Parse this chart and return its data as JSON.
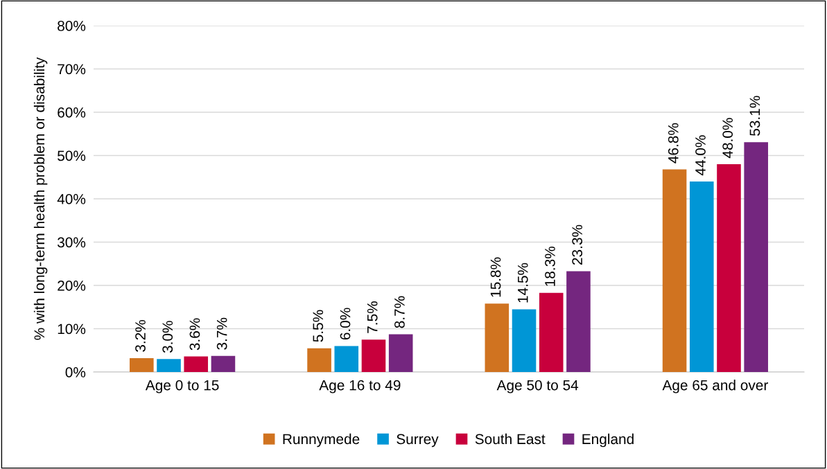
{
  "chart_data": {
    "type": "bar",
    "ylabel": "% with long-term health problem or disability",
    "categories": [
      "Age 0 to 15",
      "Age 16 to 49",
      "Age 50 to 54",
      "Age 65 and over"
    ],
    "series": [
      {
        "name": "Runnymede",
        "color": "#d07320",
        "values": [
          3.2,
          5.5,
          15.8,
          46.8
        ],
        "value_labels": [
          "3.2%",
          "5.5%",
          "15.8%",
          "46.8%"
        ]
      },
      {
        "name": "Surrey",
        "color": "#0096d6",
        "values": [
          3.0,
          6.0,
          14.5,
          44.0
        ],
        "value_labels": [
          "3.0%",
          "6.0%",
          "14.5%",
          "44.0%"
        ]
      },
      {
        "name": "South East",
        "color": "#c8003c",
        "values": [
          3.6,
          7.5,
          18.3,
          48.0
        ],
        "value_labels": [
          "3.6%",
          "7.5%",
          "18.3%",
          "48.0%"
        ]
      },
      {
        "name": "England",
        "color": "#74267f",
        "values": [
          3.7,
          8.7,
          23.3,
          53.1
        ],
        "value_labels": [
          "3.7%",
          "8.7%",
          "23.3%",
          "53.1%"
        ]
      }
    ],
    "ylim": [
      0,
      80
    ],
    "yticks": [
      {
        "value": 0,
        "label": "0%"
      },
      {
        "value": 10,
        "label": "10%"
      },
      {
        "value": 20,
        "label": "20%"
      },
      {
        "value": 30,
        "label": "30%"
      },
      {
        "value": 40,
        "label": "40%"
      },
      {
        "value": 50,
        "label": "50%"
      },
      {
        "value": 60,
        "label": "60%"
      },
      {
        "value": 70,
        "label": "70%"
      },
      {
        "value": 80,
        "label": "80%"
      }
    ],
    "grid": "y",
    "legend": "bottom"
  }
}
